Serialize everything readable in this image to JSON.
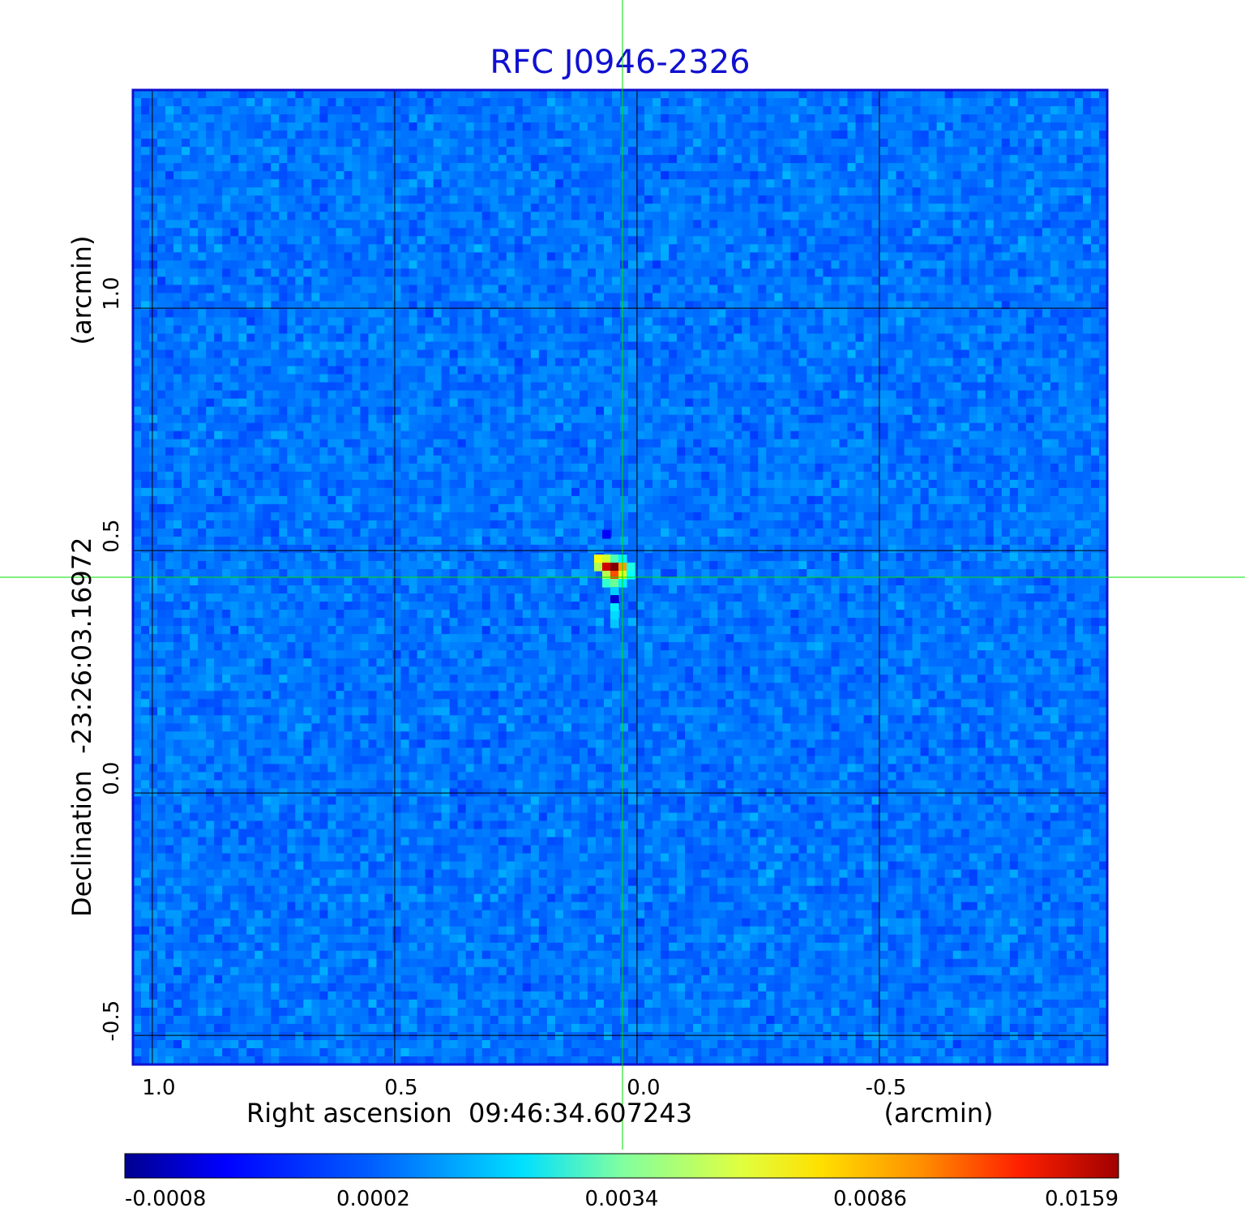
{
  "chart_data": {
    "type": "heatmap",
    "title": "RFC J0946-2326",
    "xlabel": "Right ascension  09:46:34.607243",
    "xunit": "(arcmin)",
    "ylabel": "Declination  -23:26:03.16972",
    "yunit": "(arcmin)",
    "x_ticks": [
      {
        "value": 1.0,
        "label": "1.0"
      },
      {
        "value": 0.5,
        "label": "0.5"
      },
      {
        "value": 0.0,
        "label": "0.0"
      },
      {
        "value": -0.5,
        "label": "-0.5"
      }
    ],
    "y_ticks": [
      {
        "value": 1.0,
        "label": "1.0"
      },
      {
        "value": 0.5,
        "label": "0.5"
      },
      {
        "value": 0.0,
        "label": "0.0"
      },
      {
        "value": -0.5,
        "label": "-0.5"
      }
    ],
    "xlim": [
      1.04,
      -0.97
    ],
    "ylim": [
      -0.56,
      1.45
    ],
    "grid": true,
    "crosshair": {
      "x": 0.03,
      "y": 0.445,
      "color": "#00e000"
    },
    "source_peak": {
      "x": 0.03,
      "y": 0.45,
      "value": 0.0159
    },
    "colormap": "jet",
    "colorbar": {
      "position": "bottom",
      "ticks": [
        {
          "value": -0.0008,
          "label": "-0.0008"
        },
        {
          "value": 0.0002,
          "label": "0.0002"
        },
        {
          "value": 0.0034,
          "label": "0.0034"
        },
        {
          "value": 0.0086,
          "label": "0.0086"
        },
        {
          "value": 0.0159,
          "label": "0.0159"
        }
      ]
    },
    "frame_color": "#1010d0"
  }
}
